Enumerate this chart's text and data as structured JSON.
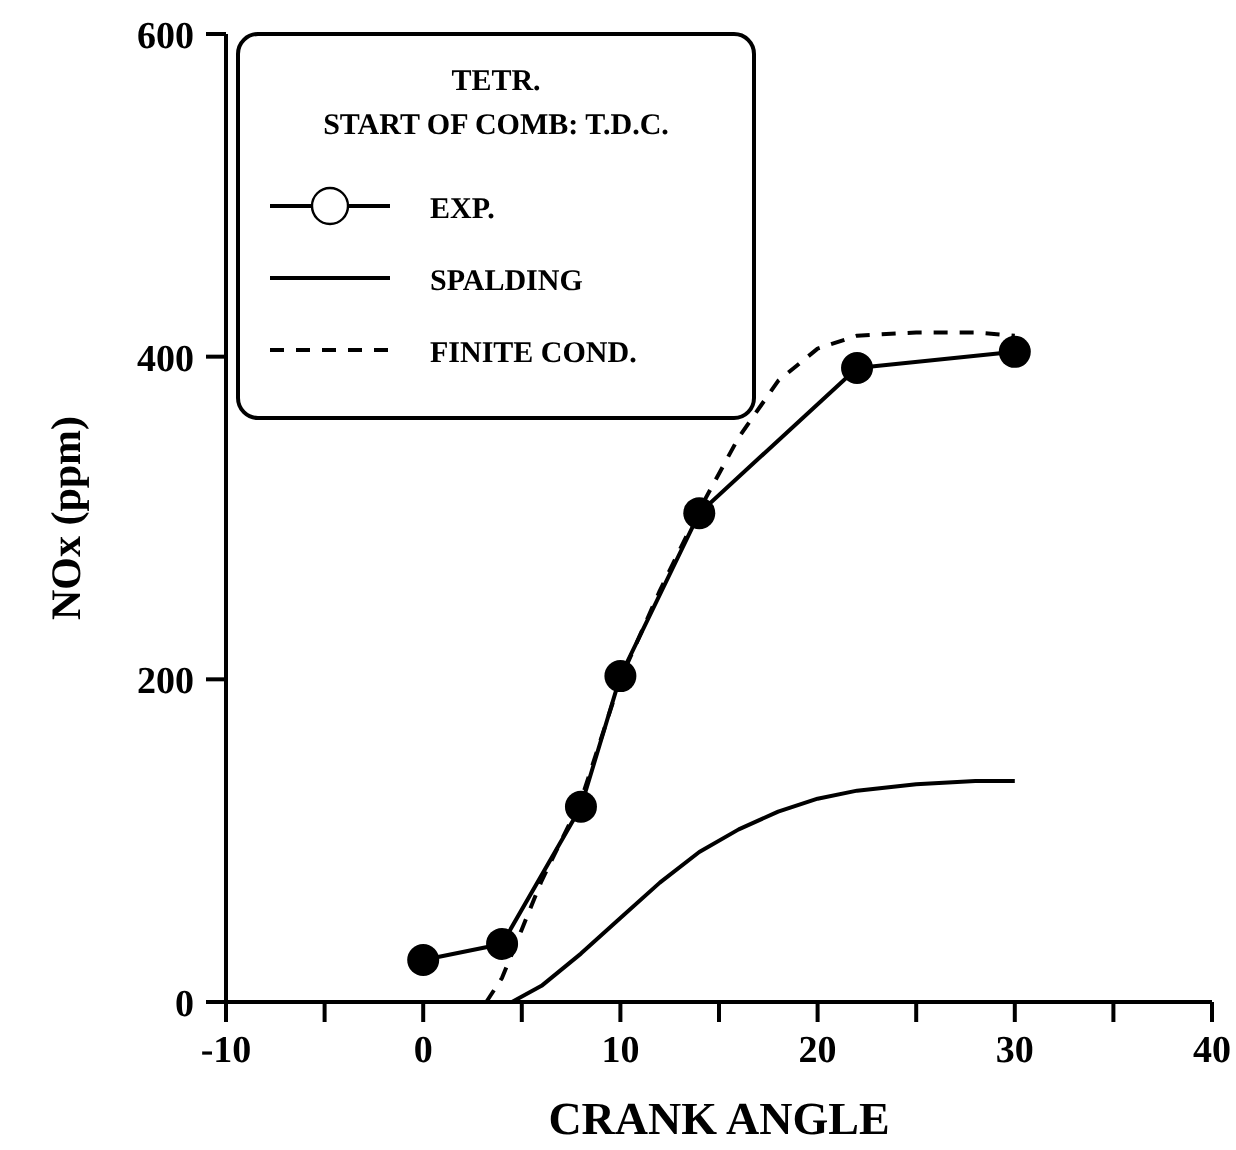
{
  "chart_data": {
    "type": "line",
    "xlabel": "CRANK ANGLE",
    "ylabel": "NOx (ppm)",
    "legend_title": "TETR.\nSTART OF COMB: T.D.C.",
    "legend": "top left",
    "grid": false,
    "xlim": [
      -10,
      40
    ],
    "xticks": [
      -10,
      {
        "value": -5,
        "label": null
      },
      0,
      {
        "value": 5,
        "label": null
      },
      10,
      {
        "value": 15,
        "label": null
      },
      20,
      {
        "value": 25,
        "label": null
      },
      30,
      {
        "value": 35,
        "label": null
      },
      40
    ],
    "ylim": [
      0,
      600
    ],
    "yticks": [
      0,
      200,
      400,
      600
    ],
    "series": [
      {
        "name": "EXP.",
        "color": "#000000",
        "marker": "circle",
        "line_style": "solid",
        "x": [
          0,
          4,
          8,
          10,
          14,
          22,
          30
        ],
        "values": [
          26,
          36,
          121,
          202,
          303,
          393,
          403
        ]
      },
      {
        "name": "SPALDING",
        "color": "#000000",
        "marker": "none",
        "line_style": "solid",
        "x": [
          4.5,
          6,
          8,
          10,
          12,
          14,
          16,
          18,
          20,
          22,
          25,
          28,
          30
        ],
        "values": [
          0,
          10,
          30,
          52,
          74,
          93,
          107,
          118,
          126,
          131,
          135,
          137,
          137
        ]
      },
      {
        "name": "FINITE COND.",
        "color": "#000000",
        "marker": "none",
        "line_style": "dashed",
        "x": [
          3.2,
          4,
          5,
          6,
          8,
          10,
          12,
          14,
          16,
          18,
          20,
          22,
          25,
          28,
          30
        ],
        "values": [
          0,
          15,
          45,
          75,
          125,
          200,
          255,
          305,
          350,
          385,
          405,
          413,
          415,
          415,
          413
        ]
      }
    ]
  }
}
